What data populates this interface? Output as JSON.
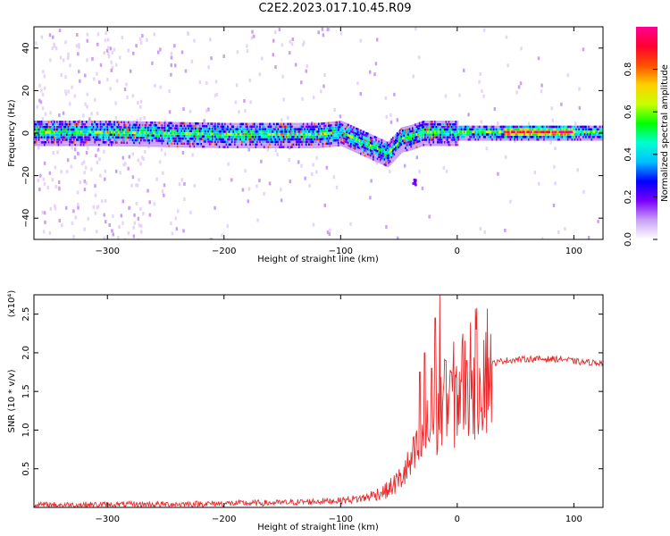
{
  "title": "C2E2.2023.017.10.45.R09",
  "chart_data": [
    {
      "type": "heatmap",
      "xlabel": "Height of straight line (km)",
      "ylabel": "Frequency (Hz)",
      "xlim": [
        -363,
        125
      ],
      "ylim": [
        -50,
        50
      ],
      "xticks": [
        -300,
        -200,
        -100,
        0,
        100
      ],
      "yticks": [
        -40,
        -20,
        0,
        20,
        40
      ],
      "colorbar": {
        "label": "Normalized spectral amplitude",
        "range": [
          0.0,
          1.0
        ],
        "ticks": [
          0.0,
          0.2,
          0.4,
          0.6,
          0.8
        ],
        "tick_labels": [
          "0.0",
          "0.2",
          "0.4",
          "0.6",
          "0.8"
        ],
        "colors": [
          "#ffffff",
          "#c9a0f5",
          "#7a00ff",
          "#0000ff",
          "#00bfff",
          "#00ffd0",
          "#00ff00",
          "#c8ff00",
          "#ffd000",
          "#ff5000",
          "#ff0030",
          "#ff0090"
        ]
      },
      "ridge": [
        [
          -363,
          1
        ],
        [
          -300,
          1
        ],
        [
          -200,
          0
        ],
        [
          -120,
          0
        ],
        [
          -100,
          1
        ],
        [
          -80,
          -4
        ],
        [
          -60,
          -9
        ],
        [
          -48,
          -2
        ],
        [
          -40,
          -1
        ],
        [
          -30,
          1
        ],
        [
          0,
          1
        ],
        [
          60,
          1
        ],
        [
          125,
          1
        ]
      ],
      "grid": false
    },
    {
      "type": "line",
      "xlabel": "Height of straight line (km)",
      "ylabel": "SNR (10 * v/v)",
      "y_multiplier": "(x10⁴)",
      "xlim": [
        -363,
        125
      ],
      "ylim": [
        0,
        2.75
      ],
      "xticks": [
        -300,
        -200,
        -100,
        0,
        100
      ],
      "yticks": [
        0.5,
        1.0,
        1.5,
        2.0,
        2.5
      ],
      "ytick_labels": [
        "0.5",
        "1.0",
        "1.5",
        "2.0",
        "2.5"
      ],
      "color": "#e8292b",
      "envelope": [
        [
          -363,
          0.03
        ],
        [
          -250,
          0.04
        ],
        [
          -150,
          0.06
        ],
        [
          -100,
          0.09
        ],
        [
          -80,
          0.12
        ],
        [
          -60,
          0.22
        ],
        [
          -50,
          0.35
        ],
        [
          -40,
          0.55
        ],
        [
          -30,
          0.85
        ],
        [
          -20,
          1.1
        ],
        [
          -10,
          1.3
        ],
        [
          0,
          1.5
        ],
        [
          10,
          1.65
        ],
        [
          20,
          1.78
        ],
        [
          30,
          1.86
        ],
        [
          40,
          1.9
        ],
        [
          60,
          1.92
        ],
        [
          90,
          1.92
        ],
        [
          105,
          1.88
        ],
        [
          125,
          1.87
        ]
      ],
      "spikes": [
        [
          -32,
          1.75
        ],
        [
          -28,
          2.0
        ],
        [
          -22,
          1.8
        ],
        [
          -19,
          2.45
        ],
        [
          -15,
          2.75
        ],
        [
          -10,
          1.9
        ],
        [
          -5,
          1.75
        ],
        [
          8,
          1.9
        ],
        [
          12,
          1.4
        ]
      ],
      "grid": false
    }
  ]
}
